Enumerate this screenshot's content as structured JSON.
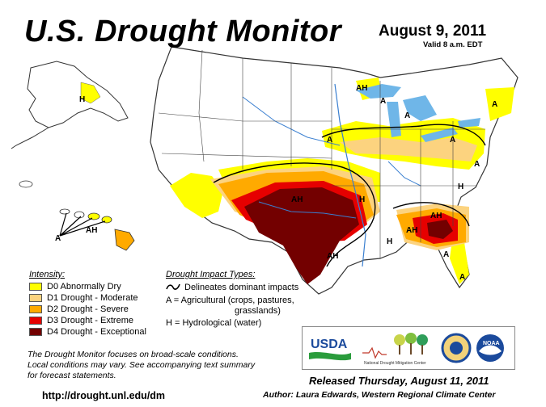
{
  "header": {
    "title": "U.S. Drought Monitor",
    "date": "August 9, 2011",
    "valid": "Valid 8 a.m. EDT"
  },
  "map": {
    "labels": [
      "AH",
      "H",
      "A",
      "AH",
      "A",
      "AH",
      "A",
      "A",
      "A",
      "H",
      "A",
      "H",
      "AH",
      "H",
      "A",
      "AH",
      "A",
      "AH",
      "A"
    ]
  },
  "legend": {
    "title": "Intensity:",
    "items": [
      {
        "label": "D0 Abnormally Dry",
        "color": "#FFFF00"
      },
      {
        "label": "D1 Drought - Moderate",
        "color": "#FCD37F"
      },
      {
        "label": "D2 Drought - Severe",
        "color": "#FFAA00"
      },
      {
        "label": "D3 Drought - Extreme",
        "color": "#E60000"
      },
      {
        "label": "D4 Drought - Exceptional",
        "color": "#730000"
      }
    ]
  },
  "impacts": {
    "title": "Drought Impact Types:",
    "line1": "Delineates dominant impacts",
    "line2a": "A = Agricultural (crops, pastures,",
    "line2b": "grasslands)",
    "line3": "H = Hydrological (water)"
  },
  "note": {
    "line1": "The Drought Monitor focuses on broad-scale conditions.",
    "line2": "Local conditions may vary. See accompanying text summary",
    "line3": "for forecast statements."
  },
  "footer": {
    "url": "http://drought.unl.edu/dm",
    "released": "Released Thursday, August 11, 2011",
    "author": "Author: Laura Edwards, Western Regional Climate Center"
  },
  "logos": {
    "usda": "USDA",
    "ndmc": "National Drought Mitigation Center",
    "noaa": "NOAA"
  }
}
